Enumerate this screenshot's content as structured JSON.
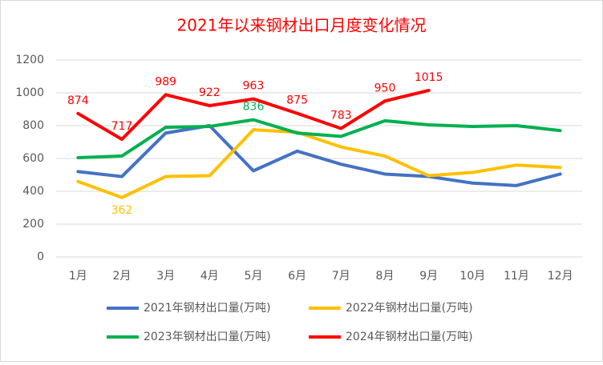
{
  "chart_data": {
    "type": "line",
    "title": "2021年以来钢材出口月度变化情况",
    "categories": [
      "1月",
      "2月",
      "3月",
      "4月",
      "5月",
      "6月",
      "7月",
      "8月",
      "9月",
      "10月",
      "11月",
      "12月"
    ],
    "series": [
      {
        "name": "2021年钢材出口量(万吨)",
        "color": "#4472c4",
        "values": [
          520,
          490,
          755,
          800,
          525,
          645,
          565,
          505,
          490,
          450,
          435,
          505
        ]
      },
      {
        "name": "2022年钢材出口量(万吨)",
        "color": "#ffc000",
        "values": [
          460,
          362,
          490,
          495,
          775,
          760,
          670,
          615,
          495,
          515,
          560,
          545
        ],
        "value_labels": [
          null,
          "362",
          null,
          null,
          null,
          null,
          null,
          null,
          null,
          null,
          null,
          null
        ]
      },
      {
        "name": "2023年钢材出口量(万吨)",
        "color": "#00b050",
        "values": [
          605,
          615,
          790,
          795,
          836,
          755,
          735,
          830,
          805,
          795,
          800,
          770
        ],
        "value_labels": [
          null,
          null,
          null,
          null,
          "836",
          null,
          null,
          null,
          null,
          null,
          null,
          null
        ]
      },
      {
        "name": "2024年钢材出口量(万吨)",
        "color": "#ff0000",
        "values": [
          874,
          717,
          989,
          922,
          963,
          875,
          783,
          950,
          1015,
          null,
          null,
          null
        ],
        "value_labels": [
          "874",
          "717",
          "989",
          "922",
          "963",
          "875",
          "783",
          "950",
          "1015",
          null,
          null,
          null
        ]
      }
    ],
    "ylim": [
      0,
      1200
    ],
    "yticks": [
      0,
      200,
      400,
      600,
      800,
      1000,
      1200
    ],
    "grid": true,
    "legend": "bottom"
  }
}
